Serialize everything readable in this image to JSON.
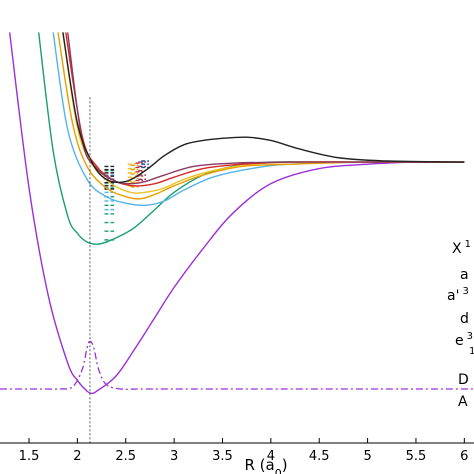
{
  "chart_data": {
    "type": "line",
    "title": "",
    "xlabel": "R (a",
    "xlabel_sub": "0",
    "xlabel_close": ")",
    "xlim": [
      1.2,
      6.1
    ],
    "ylim_scale": [
      -1.3,
      0.75
    ],
    "x_ticks": [
      "1.5",
      "2",
      "2.5",
      "3",
      "3.5",
      "4",
      "4.5",
      "5",
      "5.5",
      "6"
    ],
    "x_tick_values": [
      1.5,
      2,
      2.5,
      3,
      3.5,
      4,
      4.5,
      5,
      5.5,
      6
    ],
    "equilibrium_marker_x": 2.13,
    "curves": [
      {
        "color": "#9b30d9",
        "style": "solid",
        "x": [
          1.3,
          1.5,
          1.7,
          1.9,
          2.0,
          2.1,
          2.15,
          2.2,
          2.4,
          2.6,
          2.8,
          3.0,
          3.3,
          3.6,
          4.0,
          4.5,
          5.0,
          5.5,
          6.0
        ],
        "y": [
          0.6,
          -0.12,
          -0.62,
          -0.93,
          -1.01,
          -1.06,
          -1.07,
          -1.06,
          -0.99,
          -0.86,
          -0.72,
          -0.58,
          -0.4,
          -0.24,
          -0.1,
          -0.03,
          -0.01,
          0.0,
          0.0
        ]
      },
      {
        "color": "#1a9e77",
        "style": "solid",
        "x": [
          1.6,
          1.75,
          1.9,
          2.0,
          2.1,
          2.2,
          2.3,
          2.45,
          2.6,
          2.8,
          3.0,
          3.3,
          3.6,
          4.0,
          4.5,
          5.0,
          6.0
        ],
        "y": [
          0.6,
          0.05,
          -0.25,
          -0.33,
          -0.37,
          -0.38,
          -0.37,
          -0.34,
          -0.3,
          -0.22,
          -0.14,
          -0.06,
          -0.02,
          0.0,
          0.0,
          0.0,
          0.0
        ]
      },
      {
        "color": "#56b4e9",
        "style": "solid",
        "x": [
          1.75,
          1.9,
          2.1,
          2.3,
          2.5,
          2.7,
          2.9,
          3.1,
          3.4,
          3.8,
          4.2,
          5.0,
          6.0
        ],
        "y": [
          0.6,
          0.15,
          -0.08,
          -0.16,
          -0.19,
          -0.2,
          -0.18,
          -0.13,
          -0.07,
          -0.03,
          -0.01,
          0.0,
          0.0
        ]
      },
      {
        "color": "#e69f00",
        "style": "solid",
        "x": [
          1.8,
          1.95,
          2.1,
          2.3,
          2.5,
          2.65,
          2.8,
          3.0,
          3.3,
          3.7,
          4.2,
          5.0,
          6.0
        ],
        "y": [
          0.6,
          0.18,
          -0.02,
          -0.12,
          -0.16,
          -0.17,
          -0.15,
          -0.11,
          -0.06,
          -0.02,
          -0.01,
          0.0,
          0.0
        ]
      },
      {
        "color": "#f0c020",
        "style": "solid",
        "x": [
          1.85,
          2.0,
          2.15,
          2.35,
          2.55,
          2.7,
          2.9,
          3.1,
          3.4,
          3.8,
          4.3,
          5.0,
          6.0
        ],
        "y": [
          0.6,
          0.16,
          -0.01,
          -0.1,
          -0.14,
          -0.14,
          -0.12,
          -0.08,
          -0.04,
          -0.01,
          0.0,
          0.0,
          0.0
        ]
      },
      {
        "color": "#d62728",
        "style": "solid",
        "x": [
          1.88,
          2.05,
          2.2,
          2.4,
          2.6,
          2.8,
          3.0,
          3.3,
          3.7,
          4.2,
          5.0,
          6.0
        ],
        "y": [
          0.6,
          0.12,
          -0.02,
          -0.09,
          -0.11,
          -0.1,
          -0.07,
          -0.03,
          -0.01,
          0.0,
          0.0,
          0.0
        ]
      },
      {
        "color": "#8b3a62",
        "style": "solid",
        "x": [
          1.9,
          2.05,
          2.2,
          2.4,
          2.55,
          2.7,
          2.9,
          3.2,
          3.6,
          4.2,
          5.0,
          6.0
        ],
        "y": [
          0.6,
          0.1,
          -0.03,
          -0.09,
          -0.1,
          -0.09,
          -0.06,
          -0.02,
          -0.005,
          0.0,
          0.0,
          0.0
        ]
      },
      {
        "color": "#222222",
        "style": "solid",
        "x": [
          1.85,
          2.0,
          2.15,
          2.3,
          2.5,
          2.7,
          2.9,
          3.1,
          3.3,
          3.5,
          3.75,
          4.0,
          4.3,
          4.7,
          5.2,
          6.0
        ],
        "y": [
          0.6,
          0.18,
          0.0,
          -0.08,
          -0.09,
          -0.04,
          0.03,
          0.08,
          0.1,
          0.11,
          0.115,
          0.1,
          0.06,
          0.02,
          0.005,
          0.0
        ]
      },
      {
        "color": "#9b30d9",
        "style": "dashdot",
        "x": [
          1.2,
          1.6,
          1.8,
          1.95,
          2.05,
          2.1,
          2.13,
          2.17,
          2.22,
          2.3,
          2.45,
          2.7,
          3.5,
          6.1
        ],
        "y": [
          -1.05,
          -1.05,
          -1.05,
          -1.04,
          -0.96,
          -0.86,
          -0.83,
          -0.86,
          -0.96,
          -1.03,
          -1.05,
          -1.05,
          -1.05,
          -1.05
        ]
      }
    ],
    "vibrational_levels": [
      {
        "color": "#1a9e77",
        "x_start": 2.28,
        "x_end": 2.38,
        "y": [
          -0.04,
          -0.08,
          -0.12,
          -0.16,
          -0.2,
          -0.24,
          -0.28,
          -0.32,
          -0.36
        ]
      },
      {
        "color": "#56b4e9",
        "x_start": 2.28,
        "x_end": 2.38,
        "y": [
          -0.06,
          -0.1,
          -0.14,
          -0.18,
          -0.22
        ]
      },
      {
        "color": "#222222",
        "x_start": 2.28,
        "x_end": 2.38,
        "y": [
          -0.02,
          -0.035,
          -0.05,
          -0.065,
          -0.08,
          -0.095,
          -0.11,
          -0.125
        ]
      },
      {
        "color": "#f0c020",
        "x_start": 2.52,
        "x_end": 2.6,
        "y": [
          -0.01,
          -0.03,
          -0.05,
          -0.07,
          -0.09,
          -0.11
        ]
      },
      {
        "color": "#e69f00",
        "x_start": 2.55,
        "x_end": 2.63,
        "y": [
          -0.015,
          -0.035,
          -0.055,
          -0.075,
          -0.095,
          -0.115
        ]
      },
      {
        "color": "#d62728",
        "x_start": 2.6,
        "x_end": 2.68,
        "y": [
          -0.005,
          -0.025,
          -0.045,
          -0.065,
          -0.085
        ]
      },
      {
        "color": "#8b3a62",
        "x_start": 2.63,
        "x_end": 2.71,
        "y": [
          0.0,
          -0.02,
          -0.04,
          -0.06,
          -0.08
        ]
      },
      {
        "color": "#1f4e9e",
        "x_start": 2.66,
        "x_end": 2.74,
        "y": [
          0.005,
          -0.01,
          -0.025
        ]
      }
    ],
    "legend": [
      {
        "text": "X",
        "sup": "1"
      },
      {
        "text": "a",
        "sup": ""
      },
      {
        "text": "a'",
        "sup": "3"
      },
      {
        "text": "d",
        "sup": ""
      },
      {
        "text": "e",
        "sup": "3"
      },
      {
        "text": "",
        "sup": "1"
      },
      {
        "text": "D",
        "sup": ""
      },
      {
        "text": "A",
        "sup": ""
      }
    ]
  }
}
